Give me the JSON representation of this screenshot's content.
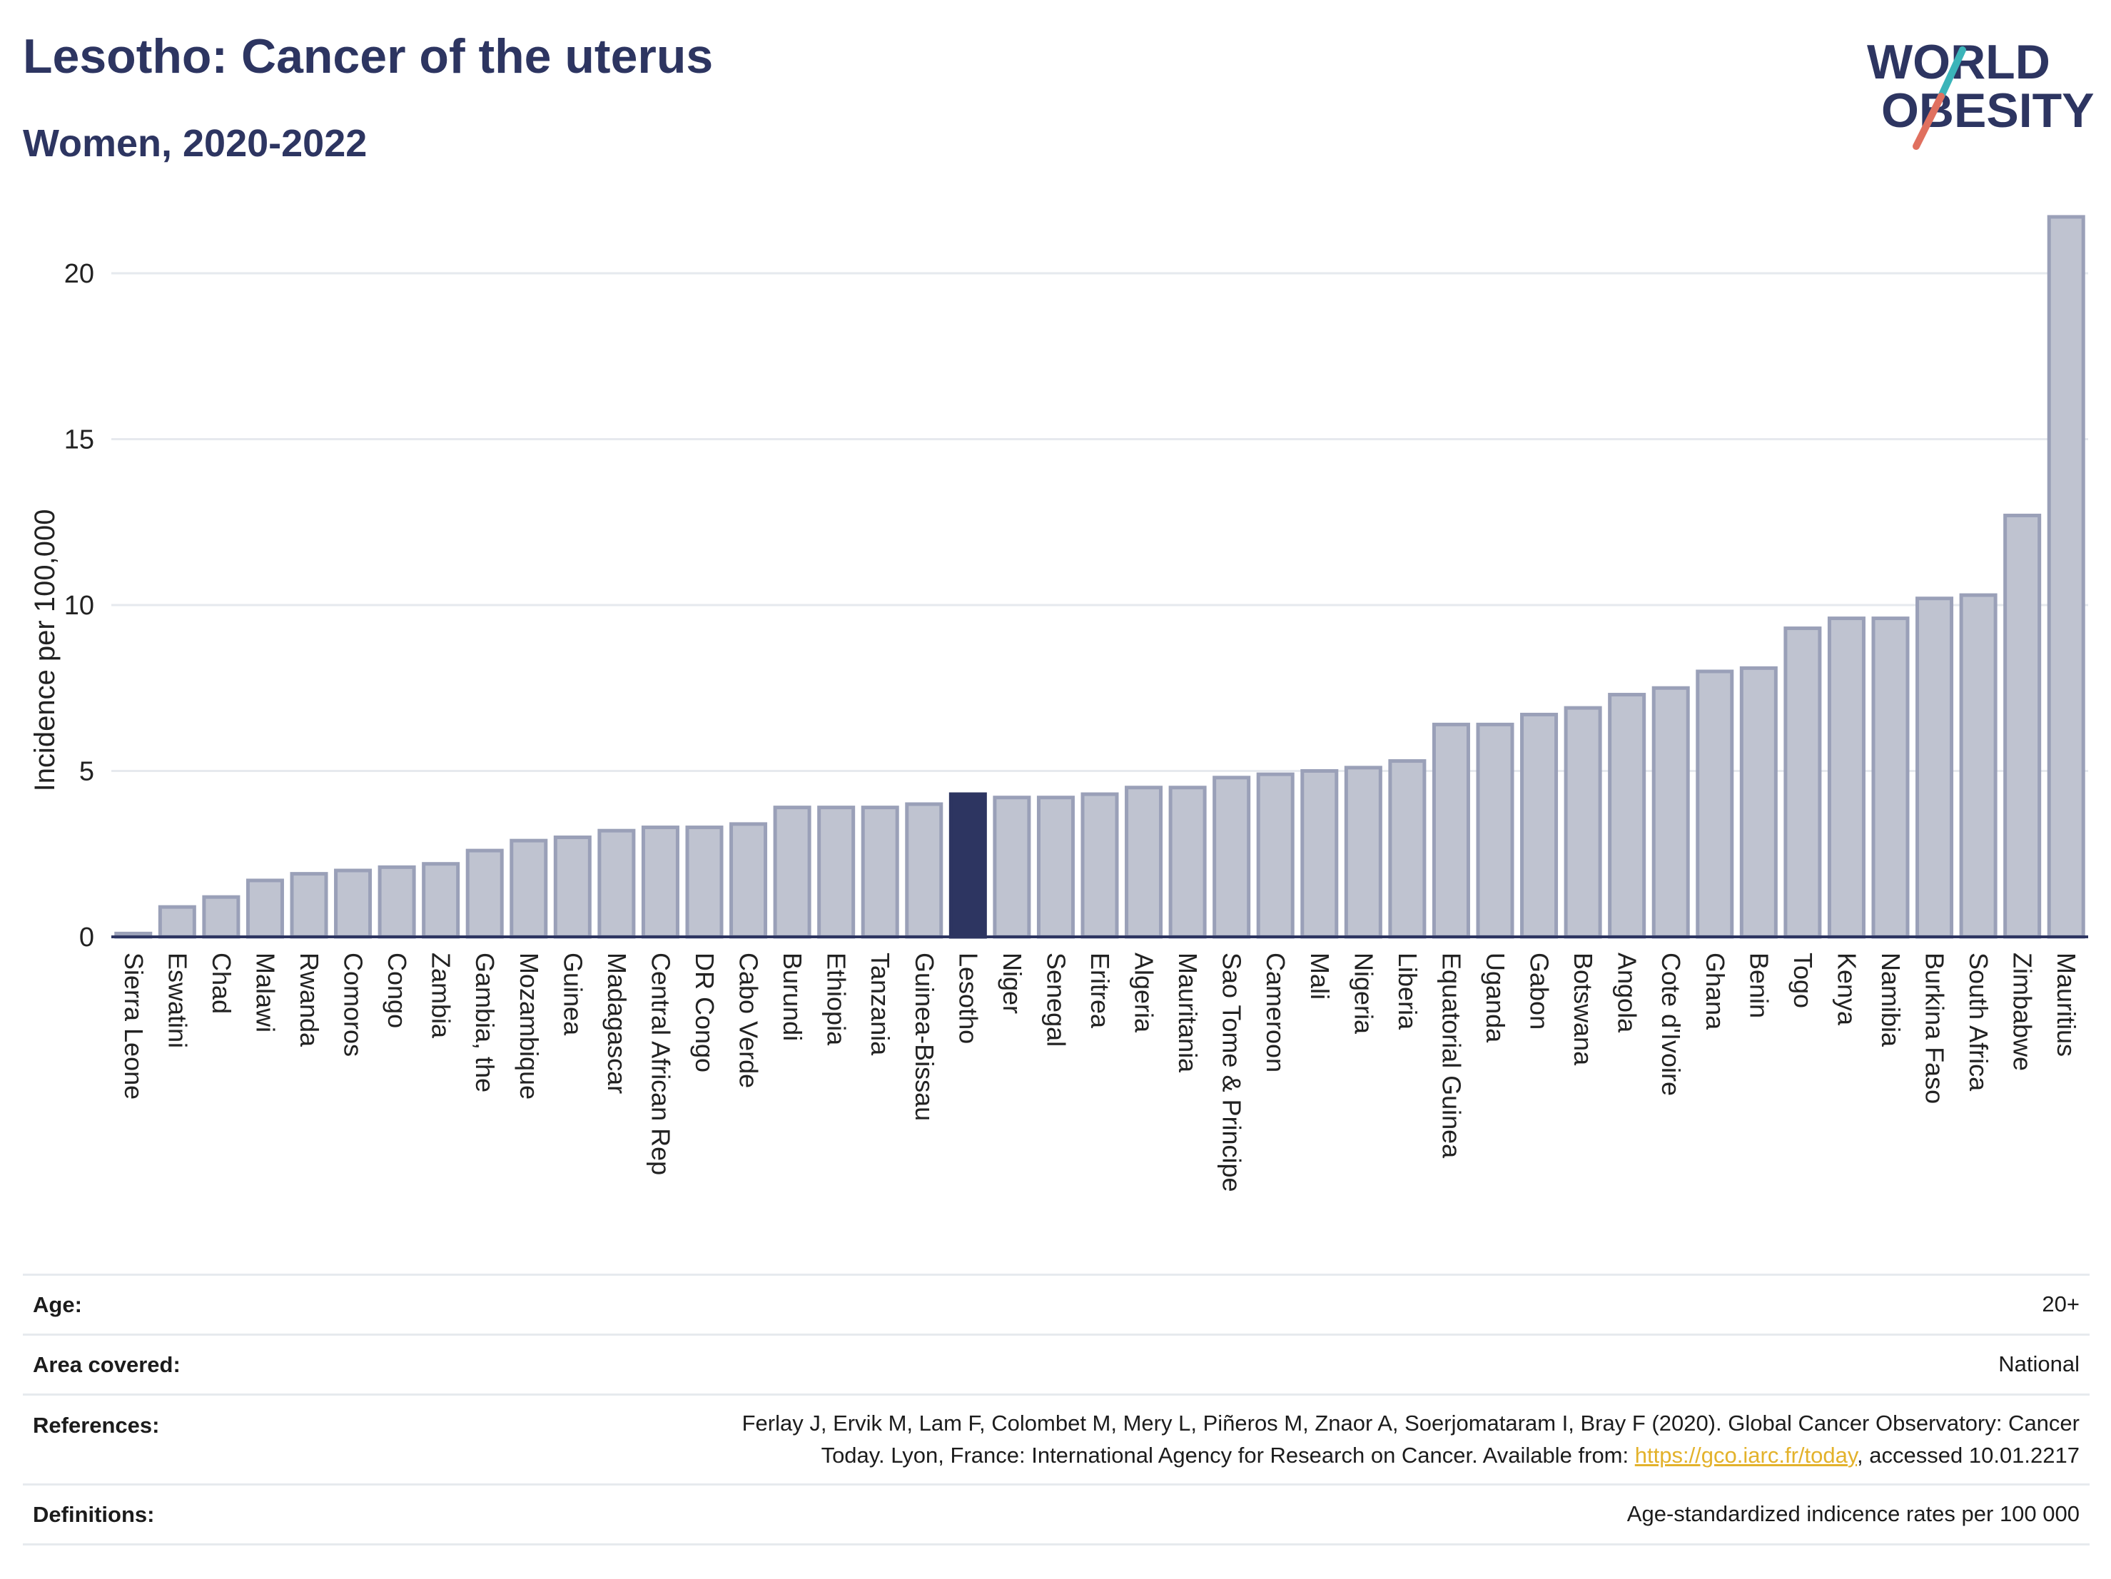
{
  "header": {
    "title": "Lesotho: Cancer of the uterus",
    "subtitle": "Women, 2020-2022"
  },
  "logo": {
    "line1": "WORLD",
    "line2": "OBESITY"
  },
  "chart_data": {
    "type": "bar",
    "title": "Lesotho: Cancer of the uterus",
    "subtitle": "Women, 2020-2022",
    "ylabel": "Incidence per 100,000",
    "xlabel": "",
    "ylim": [
      0,
      22
    ],
    "yticks": [
      0,
      5,
      10,
      15,
      20
    ],
    "grid": true,
    "highlight": "Lesotho",
    "colors": {
      "bar": "#bfc3d0",
      "bar_border": "#9aa0b8",
      "highlight": "#2d3561",
      "grid": "#e6e9ee",
      "axis": "#2d3561"
    },
    "categories": [
      "Sierra Leone",
      "Eswatini",
      "Chad",
      "Malawi",
      "Rwanda",
      "Comoros",
      "Congo",
      "Zambia",
      "Gambia, the",
      "Mozambique",
      "Guinea",
      "Madagascar",
      "Central African Rep",
      "DR Congo",
      "Cabo Verde",
      "Burundi",
      "Ethiopia",
      "Tanzania",
      "Guinea-Bissau",
      "Lesotho",
      "Niger",
      "Senegal",
      "Eritrea",
      "Algeria",
      "Mauritania",
      "Sao Tome & Principe",
      "Cameroon",
      "Mali",
      "Nigeria",
      "Liberia",
      "Equatorial Guinea",
      "Uganda",
      "Gabon",
      "Botswana",
      "Angola",
      "Cote d'Ivoire",
      "Ghana",
      "Benin",
      "Togo",
      "Kenya",
      "Namibia",
      "Burkina Faso",
      "South Africa",
      "Zimbabwe",
      "Mauritius"
    ],
    "values": [
      0.1,
      0.9,
      1.2,
      1.7,
      1.9,
      2.0,
      2.1,
      2.2,
      2.6,
      2.9,
      3.0,
      3.2,
      3.3,
      3.3,
      3.4,
      3.9,
      3.9,
      3.9,
      4.0,
      4.3,
      4.2,
      4.2,
      4.3,
      4.5,
      4.5,
      4.8,
      4.9,
      5.0,
      5.1,
      5.3,
      6.4,
      6.4,
      6.7,
      6.9,
      7.3,
      7.5,
      8.0,
      8.1,
      9.3,
      9.6,
      9.6,
      10.2,
      10.3,
      12.7,
      21.7
    ]
  },
  "info": {
    "age_label": "Age:",
    "age_value": "20+",
    "area_label": "Area covered:",
    "area_value": "National",
    "references_label": "References:",
    "references_line1": "Ferlay J, Ervik M, Lam F, Colombet M, Mery L, Piñeros M, Znaor A, Soerjomataram I, Bray F (2020). Global Cancer Observatory: Cancer",
    "references_line2_pre": "Today. Lyon, France: International Agency for Research on Cancer. Available from: ",
    "references_link": "https://gco.iarc.fr/today",
    "references_line2_post": ", accessed 10.01.2217",
    "definitions_label": "Definitions:",
    "definitions_value": "Age-standardized indicence rates per 100 000"
  }
}
